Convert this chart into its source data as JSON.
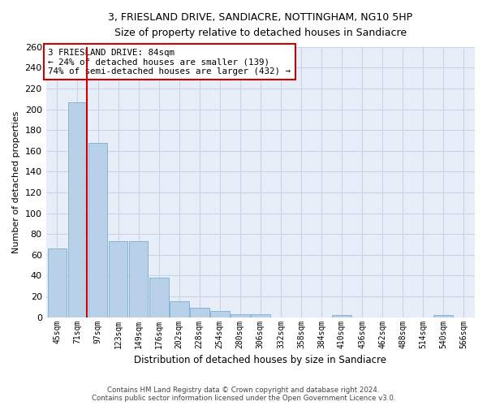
{
  "title": "3, FRIESLAND DRIVE, SANDIACRE, NOTTINGHAM, NG10 5HP",
  "subtitle": "Size of property relative to detached houses in Sandiacre",
  "xlabel": "Distribution of detached houses by size in Sandiacre",
  "ylabel": "Number of detached properties",
  "categories": [
    "45sqm",
    "71sqm",
    "97sqm",
    "123sqm",
    "149sqm",
    "176sqm",
    "202sqm",
    "228sqm",
    "254sqm",
    "280sqm",
    "306sqm",
    "332sqm",
    "358sqm",
    "384sqm",
    "410sqm",
    "436sqm",
    "462sqm",
    "488sqm",
    "514sqm",
    "540sqm",
    "566sqm"
  ],
  "values": [
    66,
    207,
    168,
    73,
    73,
    38,
    15,
    9,
    6,
    3,
    3,
    0,
    0,
    0,
    2,
    0,
    0,
    0,
    0,
    2,
    0
  ],
  "bar_color": "#b8d0e8",
  "bar_edge_color": "#7aaed0",
  "redline_color": "#cc0000",
  "annotation_text_line1": "3 FRIESLAND DRIVE: 84sqm",
  "annotation_text_line2": "← 24% of detached houses are smaller (139)",
  "annotation_text_line3": "74% of semi-detached houses are larger (432) →",
  "annotation_box_color": "#ffffff",
  "annotation_border_color": "#cc0000",
  "ylim": [
    0,
    260
  ],
  "yticks": [
    0,
    20,
    40,
    60,
    80,
    100,
    120,
    140,
    160,
    180,
    200,
    220,
    240,
    260
  ],
  "grid_color": "#c8d4e8",
  "bg_color": "#e8eef8",
  "fig_bg_color": "#ffffff",
  "footer_line1": "Contains HM Land Registry data © Crown copyright and database right 2024.",
  "footer_line2": "Contains public sector information licensed under the Open Government Licence v3.0."
}
